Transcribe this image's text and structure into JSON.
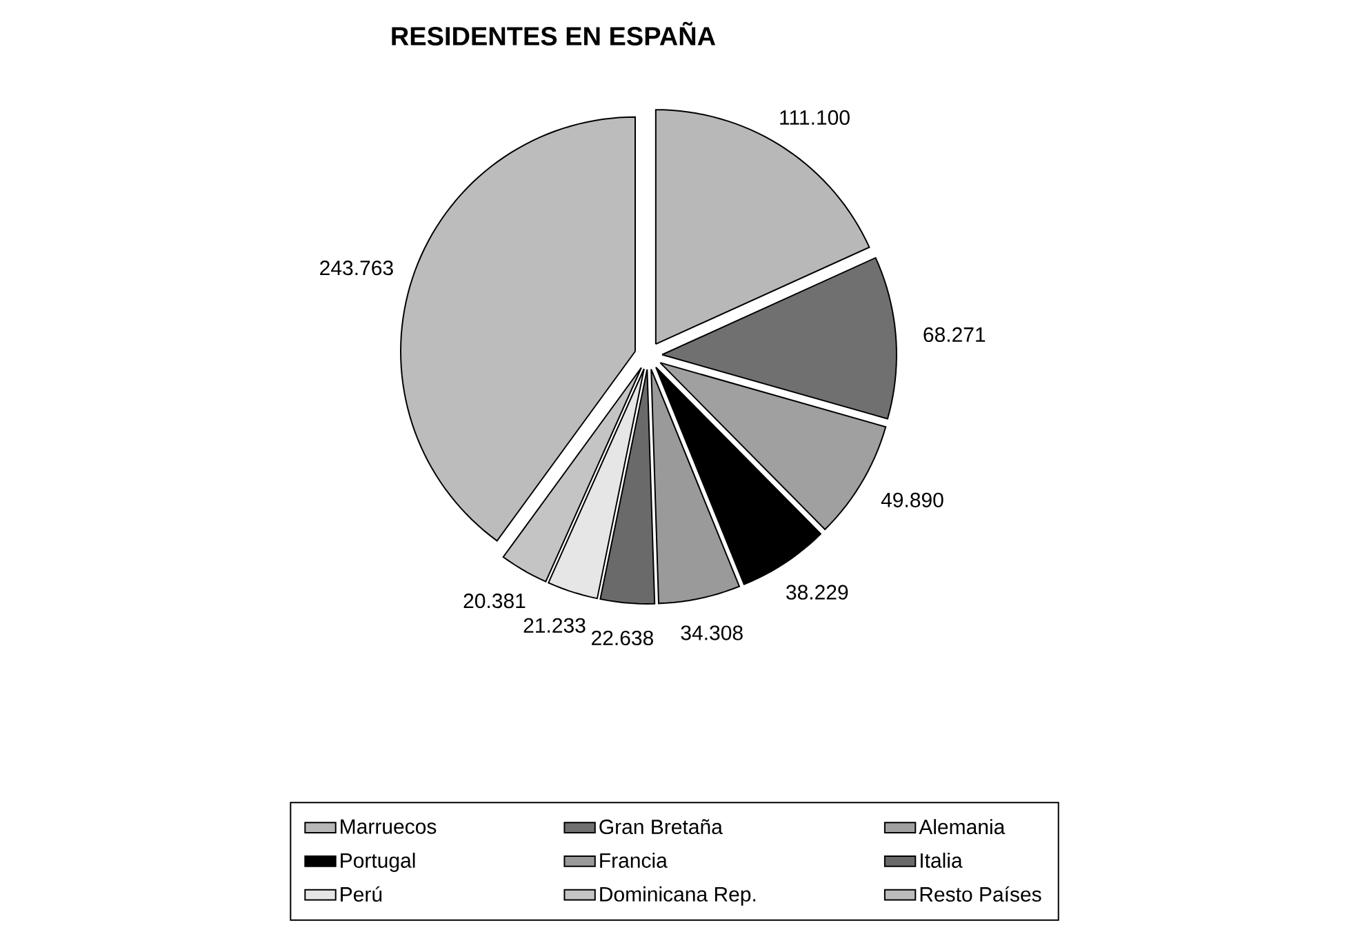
{
  "chart_data": {
    "type": "pie",
    "title": "RESIDENTES EN ESPAÑA",
    "categories": [
      "Marruecos",
      "Gran Bretaña",
      "Alemania",
      "Portugal",
      "Francia",
      "Italia",
      "Perú",
      "Dominicana Rep.",
      "Resto Países"
    ],
    "values": [
      111100,
      68271,
      49890,
      38229,
      34308,
      22638,
      21233,
      20381,
      243763
    ],
    "value_labels": [
      "111.100",
      "68.271",
      "49.890",
      "38.229",
      "34.308",
      "22.638",
      "21.233",
      "20.381",
      "243.763"
    ],
    "colors": [
      "#b8b8b8",
      "#707070",
      "#a0a0a0",
      "#000000",
      "#9a9a9a",
      "#6a6a6a",
      "#e6e6e6",
      "#c4c4c4",
      "#bcbcbc"
    ],
    "legend": "bottom"
  }
}
